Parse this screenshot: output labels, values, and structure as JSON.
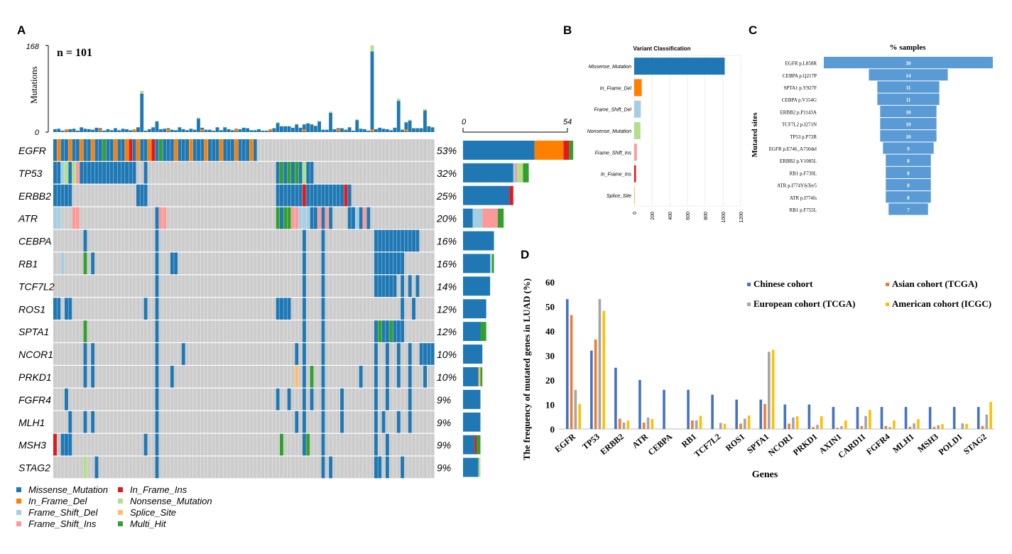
{
  "colors": {
    "Missense_Mutation": "#1f78b4",
    "In_Frame_Del": "#ff7f00",
    "Frame_Shift_Del": "#a6cee3",
    "Frame_Shift_Ins": "#fb9a99",
    "In_Frame_Ins": "#e31a1c",
    "Nonsense_Mutation": "#b2df8a",
    "Splice_Site": "#fdbf6f",
    "Multi_Hit": "#33a02c",
    "none": "#cccccc",
    "chinese": "#4472c4",
    "asian": "#ed7d31",
    "european": "#a5a5a5",
    "american": "#ffc000",
    "hbar": "#5b9bd5"
  },
  "panels": {
    "A": "A",
    "B": "B",
    "C": "C",
    "D": "D"
  },
  "chart_data": [
    {
      "type": "heatmap",
      "panel": "A",
      "subtitle": "n = 101",
      "ylabel": "Mutations",
      "tmb_ylim": [
        0,
        168
      ],
      "tmb_ticks": [
        "168",
        "0"
      ],
      "side_ticks": [
        "0",
        "54"
      ],
      "genes": [
        {
          "name": "EGFR",
          "pct": "53%",
          "counts": {
            "Missense_Mutation": 37,
            "In_Frame_Del": 15,
            "In_Frame_Ins": 3,
            "Multi_Hit": 2
          }
        },
        {
          "name": "TP53",
          "pct": "32%",
          "counts": {
            "Missense_Mutation": 26,
            "Frame_Shift_Del": 1,
            "Frame_Shift_Ins": 1,
            "Nonsense_Mutation": 3,
            "Multi_Hit": 3
          }
        },
        {
          "name": "ERBB2",
          "pct": "25%",
          "counts": {
            "Missense_Mutation": 24,
            "In_Frame_Ins": 2
          }
        },
        {
          "name": "ATR",
          "pct": "20%",
          "counts": {
            "Missense_Mutation": 5,
            "Frame_Shift_Del": 5,
            "Frame_Shift_Ins": 8,
            "Multi_Hit": 3
          }
        },
        {
          "name": "CEBPA",
          "pct": "16%",
          "counts": {
            "Missense_Mutation": 16
          }
        },
        {
          "name": "RB1",
          "pct": "16%",
          "counts": {
            "Missense_Mutation": 14,
            "Frame_Shift_Del": 1,
            "Multi_Hit": 1
          }
        },
        {
          "name": "TCF7L2",
          "pct": "14%",
          "counts": {
            "Missense_Mutation": 14
          }
        },
        {
          "name": "ROS1",
          "pct": "12%",
          "counts": {
            "Missense_Mutation": 12
          }
        },
        {
          "name": "SPTA1",
          "pct": "12%",
          "counts": {
            "Missense_Mutation": 9,
            "Multi_Hit": 3
          }
        },
        {
          "name": "NCOR1",
          "pct": "10%",
          "counts": {
            "Missense_Mutation": 10
          }
        },
        {
          "name": "PRKD1",
          "pct": "10%",
          "counts": {
            "Missense_Mutation": 8,
            "Splice_Site": 1,
            "Multi_Hit": 1
          }
        },
        {
          "name": "FGFR4",
          "pct": "9%",
          "counts": {
            "Missense_Mutation": 9
          }
        },
        {
          "name": "MLH1",
          "pct": "9%",
          "counts": {
            "Missense_Mutation": 9
          }
        },
        {
          "name": "MSH3",
          "pct": "9%",
          "counts": {
            "Missense_Mutation": 6,
            "In_Frame_Ins": 1,
            "Multi_Hit": 2
          }
        },
        {
          "name": "STAG2",
          "pct": "9%",
          "counts": {
            "Missense_Mutation": 8,
            "Nonsense_Mutation": 1
          }
        }
      ],
      "cells": {
        "EGFR": [
          "M",
          "D",
          "M",
          "D",
          "M",
          "D",
          "M",
          "D",
          "M",
          "M",
          "D",
          "M",
          "D",
          "H",
          "M",
          "D",
          "M",
          "D",
          "M",
          "D",
          "M",
          "M",
          "M",
          "D",
          "M",
          "M",
          "I",
          "M",
          "D",
          "M",
          "M",
          "D",
          "M",
          "M",
          "I",
          "D",
          "M",
          "I",
          "D",
          "D",
          "D",
          "M",
          "M",
          "D",
          "M",
          "D",
          "M",
          "M",
          "D",
          "M",
          "M",
          "D",
          "M",
          "M",
          "M",
          "M",
          "M",
          "M",
          "D",
          "M",
          "M",
          "M",
          "M",
          "M",
          "M",
          "M",
          "M",
          "M",
          "M",
          "M",
          "M",
          "M",
          "M",
          "M",
          "M",
          "M",
          "M",
          "M"
        ],
        "TP53_cols": [
          0,
          1,
          2,
          3,
          4,
          5,
          6,
          7,
          8,
          9,
          10,
          11,
          12,
          13,
          14,
          15,
          16,
          17,
          18,
          19,
          20,
          21,
          22,
          23,
          24,
          25,
          26,
          27,
          28,
          29,
          30,
          31,
          32,
          33,
          34,
          35,
          36,
          37,
          38,
          39,
          40,
          41,
          42,
          43,
          44,
          45,
          46,
          47,
          48,
          49,
          50,
          51,
          52,
          53
        ]
      },
      "legend": [
        {
          "key": "Missense_Mutation",
          "label": "Missense_Mutation"
        },
        {
          "key": "In_Frame_Ins",
          "label": "In_Frame_Ins"
        },
        {
          "key": "In_Frame_Del",
          "label": "In_Frame_Del"
        },
        {
          "key": "Nonsense_Mutation",
          "label": "Nonsense_Mutation"
        },
        {
          "key": "Frame_Shift_Del",
          "label": "Frame_Shift_Del"
        },
        {
          "key": "Splice_Site",
          "label": "Splice_Site"
        },
        {
          "key": "Frame_Shift_Ins",
          "label": "Frame_Shift_Ins"
        },
        {
          "key": "Multi_Hit",
          "label": "Multi_Hit"
        }
      ]
    },
    {
      "type": "bar",
      "panel": "B",
      "title": "Variant Classification",
      "categories": [
        "Missense_Mutation",
        "In_Frame_Del",
        "Frame_Shift_Del",
        "Nonsense_Mutation",
        "Frame_Shift_Ins",
        "In_Frame_Ins",
        "Splice_Site"
      ],
      "values": [
        1020,
        85,
        75,
        70,
        30,
        20,
        5
      ],
      "xlim": [
        0,
        1200
      ],
      "xticks": [
        "0",
        "200",
        "400",
        "600",
        "800",
        "1000",
        "1200"
      ]
    },
    {
      "type": "bar",
      "panel": "C",
      "title": "% samples",
      "ylabel": "Mutated sites",
      "categories": [
        "EGFR p.L858R",
        "CEBPA p.Q217P",
        "SPTA1 p.Y927F",
        "CEBPA p.V154G",
        "ERBB2 p.P1143A",
        "TCF7L2 p.I271N",
        "TP53 p.P72R",
        "EGFR p.E746_A750del",
        "ERBB2 p.V1085L",
        "RB1 p.F739L",
        "ATR p.I774YfsTer5",
        "ATR p.I774fs",
        "RB1 p.F755L"
      ],
      "values": [
        30,
        14,
        11,
        11,
        10,
        10,
        10,
        9,
        8,
        8,
        8,
        8,
        7
      ],
      "labels": [
        "30",
        "14",
        "11",
        "11",
        "10",
        "10",
        "10",
        "9",
        "8",
        "8",
        "8",
        "8",
        "7"
      ]
    },
    {
      "type": "bar",
      "panel": "D",
      "xlabel": "Genes",
      "ylabel": "The frequency of mutated genes in LUAD (%)",
      "ylim": [
        0,
        60
      ],
      "yticks": [
        "0",
        "10",
        "20",
        "30",
        "40",
        "50",
        "60"
      ],
      "categories": [
        "EGFR",
        "TP53",
        "ERBB2",
        "ATR",
        "CEBPA",
        "RB1",
        "TCF7L2",
        "ROS1",
        "SPTA1",
        "NCOR1",
        "PRKD1",
        "AXIN1",
        "CARD11",
        "FGFR4",
        "MLH1",
        "MSH3",
        "POLD1",
        "STAG2"
      ],
      "series": [
        {
          "name": "Chinese cohort",
          "color": "chinese",
          "values": [
            53,
            32,
            25,
            20,
            16,
            16,
            14,
            12,
            12,
            10,
            10,
            9,
            9,
            9,
            9,
            9,
            9,
            9
          ]
        },
        {
          "name": "Asian cohort (TCGA)",
          "color": "asian",
          "values": [
            46.5,
            36.5,
            4.2,
            2.6,
            0,
            3.5,
            0,
            2.2,
            10.2,
            2.2,
            0.8,
            0.5,
            1.2,
            1.2,
            0.9,
            0.8,
            0,
            1.2
          ]
        },
        {
          "name": "European cohort (TCGA)",
          "color": "european",
          "values": [
            16,
            53,
            2.6,
            4.7,
            0,
            3.5,
            2.5,
            4.2,
            31.5,
            4.7,
            1.7,
            1.2,
            5.3,
            0.8,
            2.3,
            1.6,
            2.3,
            5.9
          ]
        },
        {
          "name": "American cohort (ICGC)",
          "color": "american",
          "values": [
            10.2,
            48.2,
            3.4,
            4.1,
            0,
            5.4,
            2.1,
            5.5,
            32.3,
            5.2,
            5.2,
            3.5,
            7.8,
            3.5,
            4.0,
            2.0,
            2.1,
            11.0
          ]
        }
      ]
    }
  ]
}
